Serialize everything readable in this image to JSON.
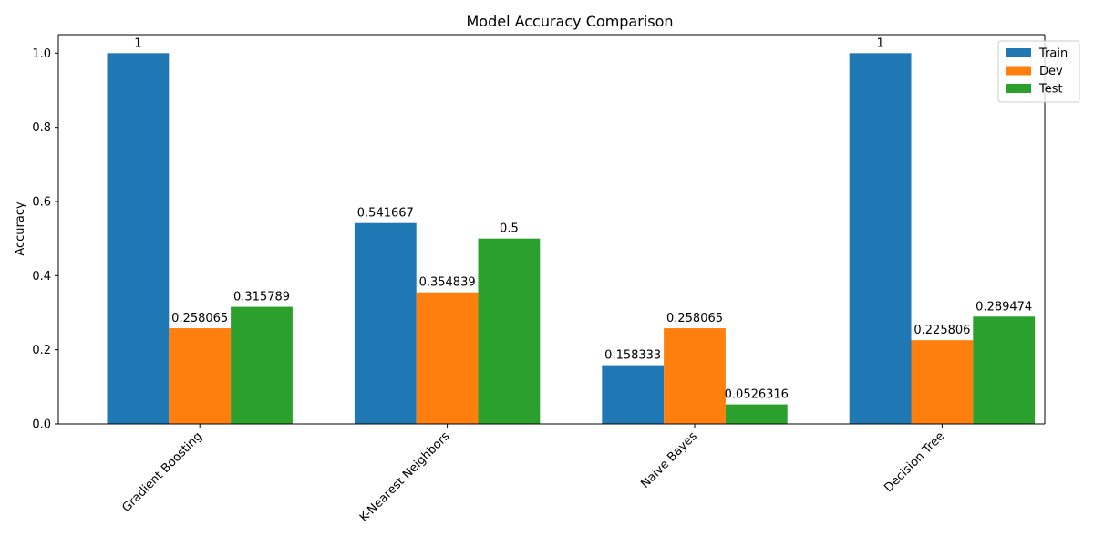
{
  "chart_data": {
    "type": "bar",
    "title": "Model Accuracy Comparison",
    "xlabel": "",
    "ylabel": "Accuracy",
    "categories": [
      "Gradient Boosting",
      "K-Nearest Neighbors",
      "Naive Bayes",
      "Decision Tree"
    ],
    "series": [
      {
        "name": "Train",
        "color": "#1f77b4",
        "values": [
          1,
          0.541667,
          0.158333,
          1
        ]
      },
      {
        "name": "Dev",
        "color": "#ff7f0e",
        "values": [
          0.258065,
          0.354839,
          0.258065,
          0.225806
        ]
      },
      {
        "name": "Test",
        "color": "#2ca02c",
        "values": [
          0.315789,
          0.5,
          0.0526316,
          0.289474
        ]
      }
    ],
    "ylim": [
      0,
      1.05
    ],
    "yticks": [
      0.0,
      0.2,
      0.4,
      0.6,
      0.8,
      1.0
    ],
    "ytick_labels": [
      "0.0",
      "0.2",
      "0.4",
      "0.6",
      "0.8",
      "1.0"
    ],
    "data_labels": [
      [
        "1",
        "0.541667",
        "0.158333",
        "1"
      ],
      [
        "0.258065",
        "0.354839",
        "0.258065",
        "0.225806"
      ],
      [
        "0.315789",
        "0.5",
        "0.0526316",
        "0.289474"
      ]
    ],
    "legend_position": "top-right",
    "grid": false
  }
}
